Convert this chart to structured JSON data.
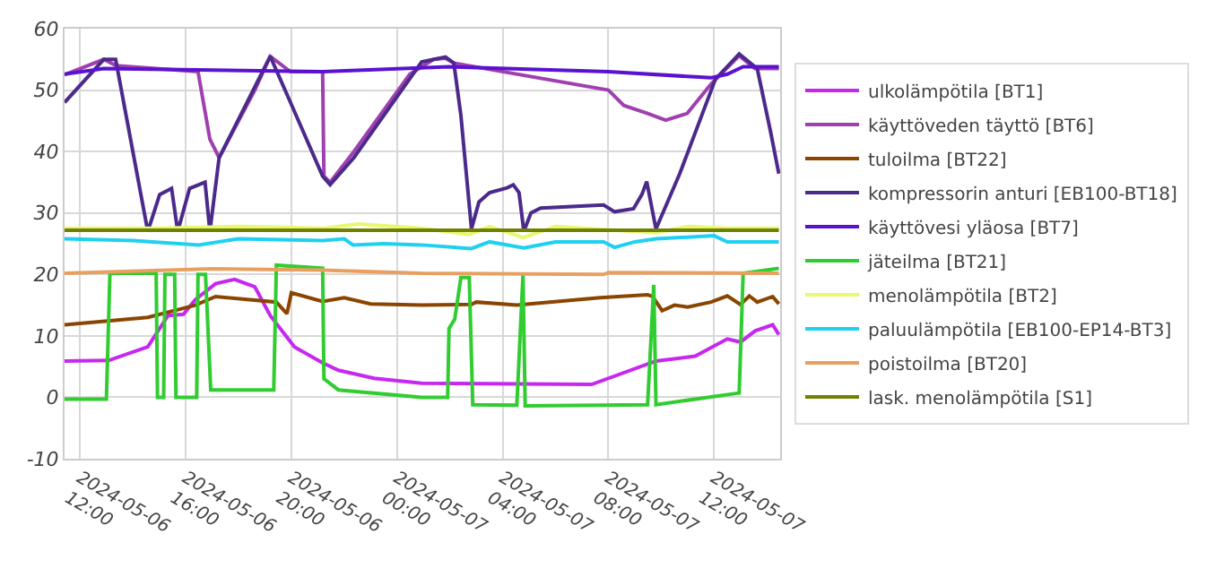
{
  "chart_data": {
    "type": "line",
    "xlim": [
      "2024-05-06T11:25",
      "2024-05-07T14:30"
    ],
    "ylim": [
      -10,
      60
    ],
    "yticks": [
      -10,
      0,
      10,
      20,
      30,
      40,
      50,
      60
    ],
    "xticks": [
      {
        "value": "2024-05-06T12:00",
        "label": "2024-05-06 12:00"
      },
      {
        "value": "2024-05-06T16:00",
        "label": "2024-05-06 16:00"
      },
      {
        "value": "2024-05-06T20:00",
        "label": "2024-05-06 20:00"
      },
      {
        "value": "2024-05-07T00:00",
        "label": "2024-05-07 00:00"
      },
      {
        "value": "2024-05-07T04:00",
        "label": "2024-05-07 04:00"
      },
      {
        "value": "2024-05-07T08:00",
        "label": "2024-05-07 08:00"
      },
      {
        "value": "2024-05-07T12:00",
        "label": "2024-05-07 12:00"
      }
    ],
    "grid": true,
    "legend": "right",
    "marker": "none",
    "line_style": "solid",
    "series": [
      {
        "name": "ulkolämpötila [BT1]",
        "color": "#c628f0",
        "x": [
          "2024-05-06T11:25",
          "2024-05-06T13:05",
          "2024-05-06T14:34",
          "2024-05-06T15:20",
          "2024-05-06T15:55",
          "2024-05-06T16:22",
          "2024-05-06T17:08",
          "2024-05-06T17:51",
          "2024-05-06T18:37",
          "2024-05-06T19:12",
          "2024-05-06T20:07",
          "2024-05-06T21:11",
          "2024-05-06T21:47",
          "2024-05-06T23:08",
          "2024-05-07T00:56",
          "2024-05-07T07:22",
          "2024-05-07T09:48",
          "2024-05-07T11:17",
          "2024-05-07T12:30",
          "2024-05-07T13:00",
          "2024-05-07T13:33",
          "2024-05-07T14:13",
          "2024-05-07T14:27"
        ],
        "values": [
          5.9,
          6.0,
          8.2,
          13.3,
          13.5,
          15.9,
          18.5,
          19.2,
          18.0,
          13.3,
          8.2,
          5.6,
          4.4,
          3.1,
          2.3,
          2.1,
          5.9,
          6.7,
          9.5,
          9.0,
          10.8,
          11.8,
          10.2
        ]
      },
      {
        "name": "käyttöveden täyttö [BT6]",
        "color": "#a040b0",
        "x": [
          "2024-05-06T11:25",
          "2024-05-06T12:54",
          "2024-05-06T13:21",
          "2024-05-06T16:28",
          "2024-05-06T16:55",
          "2024-05-06T17:16",
          "2024-05-06T18:37",
          "2024-05-06T19:12",
          "2024-05-06T19:58",
          "2024-05-06T21:11",
          "2024-05-06T21:14",
          "2024-05-06T21:28",
          "2024-05-06T22:22",
          "2024-05-07T00:29",
          "2024-05-07T01:23",
          "2024-05-07T01:50",
          "2024-05-07T02:09",
          "2024-05-07T08:00",
          "2024-05-07T08:35",
          "2024-05-07T09:29",
          "2024-05-07T10:10",
          "2024-05-07T10:59",
          "2024-05-07T11:53",
          "2024-05-07T12:57",
          "2024-05-07T13:33",
          "2024-05-07T14:27"
        ],
        "values": [
          52.5,
          55,
          54,
          53,
          42,
          39,
          50,
          55.5,
          53,
          53,
          36,
          35,
          40,
          52.6,
          55,
          55.2,
          54.4,
          50,
          47.5,
          46.2,
          45.1,
          46.2,
          51,
          55.6,
          53.5,
          53.5
        ]
      },
      {
        "name": "tuloilma [BT22]",
        "color": "#8b4500",
        "x": [
          "2024-05-06T11:25",
          "2024-05-06T14:34",
          "2024-05-06T16:22",
          "2024-05-06T17:08",
          "2024-05-06T19:26",
          "2024-05-06T19:50",
          "2024-05-06T20:00",
          "2024-05-06T21:11",
          "2024-05-06T22:00",
          "2024-05-06T23:00",
          "2024-05-07T00:56",
          "2024-05-07T02:49",
          "2024-05-07T03:00",
          "2024-05-07T04:32",
          "2024-05-07T07:41",
          "2024-05-07T09:29",
          "2024-05-07T09:40",
          "2024-05-07T10:02",
          "2024-05-07T10:30",
          "2024-05-07T11:00",
          "2024-05-07T11:53",
          "2024-05-07T12:30",
          "2024-05-07T13:00",
          "2024-05-07T13:20",
          "2024-05-07T13:38",
          "2024-05-07T14:13",
          "2024-05-07T14:27"
        ],
        "values": [
          11.8,
          13,
          15,
          16.4,
          15.5,
          13.6,
          17,
          15.6,
          16.2,
          15.2,
          15,
          15.1,
          15.5,
          15,
          16.2,
          16.7,
          16.4,
          14.1,
          15,
          14.7,
          15.5,
          16.5,
          15.1,
          16.5,
          15.5,
          16.4,
          15.2
        ]
      },
      {
        "name": "kompressorin anturi [EB100-BT18]",
        "color": "#4b2a8c",
        "x": [
          "2024-05-06T11:25",
          "2024-05-06T12:54",
          "2024-05-06T13:21",
          "2024-05-06T14:34",
          "2024-05-06T15:01",
          "2024-05-06T15:28",
          "2024-05-06T15:42",
          "2024-05-06T16:09",
          "2024-05-06T16:44",
          "2024-05-06T16:55",
          "2024-05-06T17:16",
          "2024-05-06T19:12",
          "2024-05-06T19:58",
          "2024-05-06T21:11",
          "2024-05-06T21:28",
          "2024-05-06T22:22",
          "2024-05-07T00:56",
          "2024-05-07T01:50",
          "2024-05-07T02:09",
          "2024-05-07T02:25",
          "2024-05-07T02:49",
          "2024-05-07T03:06",
          "2024-05-07T03:30",
          "2024-05-07T04:10",
          "2024-05-07T04:24",
          "2024-05-07T04:37",
          "2024-05-07T04:48",
          "2024-05-07T05:04",
          "2024-05-07T05:26",
          "2024-05-07T07:49",
          "2024-05-07T08:14",
          "2024-05-07T08:57",
          "2024-05-07T09:16",
          "2024-05-07T09:27",
          "2024-05-07T09:48",
          "2024-05-07T10:42",
          "2024-05-07T12:03",
          "2024-05-07T12:57",
          "2024-05-07T13:38",
          "2024-05-07T14:08",
          "2024-05-07T14:27"
        ],
        "values": [
          48,
          55,
          55,
          27,
          33,
          34,
          27,
          34,
          35,
          27,
          39,
          55.5,
          48,
          36,
          34.6,
          39,
          54.6,
          55.4,
          54.4,
          45.9,
          27.4,
          31.8,
          33.3,
          34.1,
          34.6,
          33.3,
          27,
          30,
          30.8,
          31.3,
          30.2,
          30.7,
          33,
          35.1,
          27.4,
          36.4,
          51.8,
          55.9,
          53.5,
          43.3,
          36.4
        ]
      },
      {
        "name": "käyttövesi yläosa [BT7]",
        "color": "#5a12d0",
        "x": [
          "2024-05-06T11:25",
          "2024-05-06T12:54",
          "2024-05-06T21:11",
          "2024-05-07T01:58",
          "2024-05-07T08:00",
          "2024-05-07T11:53",
          "2024-05-07T12:30",
          "2024-05-07T13:06",
          "2024-05-07T14:27"
        ],
        "values": [
          52.6,
          53.5,
          53,
          53.8,
          53,
          52,
          52.6,
          53.8,
          53.8
        ]
      },
      {
        "name": "jäteilma [BT21]",
        "color": "#30cc30",
        "x": [
          "2024-05-06T11:25",
          "2024-05-06T13:00",
          "2024-05-06T13:08",
          "2024-05-06T14:53",
          "2024-05-06T14:56",
          "2024-05-06T15:10",
          "2024-05-06T15:13",
          "2024-05-06T15:35",
          "2024-05-06T15:38",
          "2024-05-06T16:25",
          "2024-05-06T16:28",
          "2024-05-06T16:45",
          "2024-05-06T16:57",
          "2024-05-06T19:20",
          "2024-05-06T19:26",
          "2024-05-06T21:11",
          "2024-05-06T21:14",
          "2024-05-06T21:47",
          "2024-05-07T00:56",
          "2024-05-07T01:55",
          "2024-05-07T01:58",
          "2024-05-07T02:11",
          "2024-05-07T02:25",
          "2024-05-07T02:44",
          "2024-05-07T02:52",
          "2024-05-07T04:32",
          "2024-05-07T04:46",
          "2024-05-07T04:51",
          "2024-05-07T09:29",
          "2024-05-07T09:43",
          "2024-05-07T09:48",
          "2024-05-07T12:57",
          "2024-05-07T13:06",
          "2024-05-07T14:27"
        ],
        "values": [
          -0.3,
          -0.3,
          20.2,
          20.2,
          0,
          0,
          20,
          20,
          0,
          0,
          20,
          20,
          1.2,
          1.2,
          21.5,
          21,
          3,
          1.2,
          0,
          0,
          11.2,
          12.7,
          19.5,
          19.5,
          -1.2,
          -1.3,
          19.9,
          -1.4,
          -1.2,
          18.3,
          -1.2,
          0.7,
          20.2,
          21
        ]
      },
      {
        "name": "menolämpötila [BT2]",
        "color": "#e8f870",
        "x": [
          "2024-05-06T11:25",
          "2024-05-06T15:00",
          "2024-05-06T18:00",
          "2024-05-06T21:11",
          "2024-05-06T22:30",
          "2024-05-07T00:56",
          "2024-05-07T02:44",
          "2024-05-07T03:30",
          "2024-05-07T04:46",
          "2024-05-07T06:00",
          "2024-05-07T09:48",
          "2024-05-07T11:00",
          "2024-05-07T12:30",
          "2024-05-07T14:27"
        ],
        "values": [
          27.5,
          27.5,
          27.8,
          27.5,
          28.2,
          27.5,
          26.5,
          27.8,
          26,
          27.8,
          26.8,
          27.8,
          27.5,
          27.5
        ]
      },
      {
        "name": "paluulämpötila [EB100-EP14-BT3]",
        "color": "#20d0f0",
        "x": [
          "2024-05-06T11:25",
          "2024-05-06T14:00",
          "2024-05-06T16:30",
          "2024-05-06T18:00",
          "2024-05-06T21:11",
          "2024-05-06T22:00",
          "2024-05-06T22:20",
          "2024-05-06T23:30",
          "2024-05-07T00:56",
          "2024-05-07T02:49",
          "2024-05-07T03:30",
          "2024-05-07T04:48",
          "2024-05-07T06:00",
          "2024-05-07T07:49",
          "2024-05-07T08:14",
          "2024-05-07T09:00",
          "2024-05-07T09:48",
          "2024-05-07T12:00",
          "2024-05-07T12:30",
          "2024-05-07T14:27"
        ],
        "values": [
          25.8,
          25.5,
          24.8,
          25.8,
          25.5,
          25.8,
          24.8,
          25,
          24.8,
          24.2,
          25.3,
          24.3,
          25.3,
          25.3,
          24.4,
          25.3,
          25.8,
          26.3,
          25.3,
          25.3
        ]
      },
      {
        "name": "poistoilma [BT20]",
        "color": "#e8a060",
        "x": [
          "2024-05-06T11:25",
          "2024-05-06T17:00",
          "2024-05-06T21:11",
          "2024-05-07T00:56",
          "2024-05-07T07:49",
          "2024-05-07T08:00",
          "2024-05-07T14:27"
        ],
        "values": [
          20.2,
          20.9,
          20.7,
          20.2,
          20,
          20.3,
          20.2
        ]
      },
      {
        "name": "lask. menolämpötila [S1]",
        "color": "#708000",
        "x": [
          "2024-05-06T11:25",
          "2024-05-07T14:27"
        ],
        "values": [
          27.2,
          27.2
        ]
      }
    ]
  }
}
